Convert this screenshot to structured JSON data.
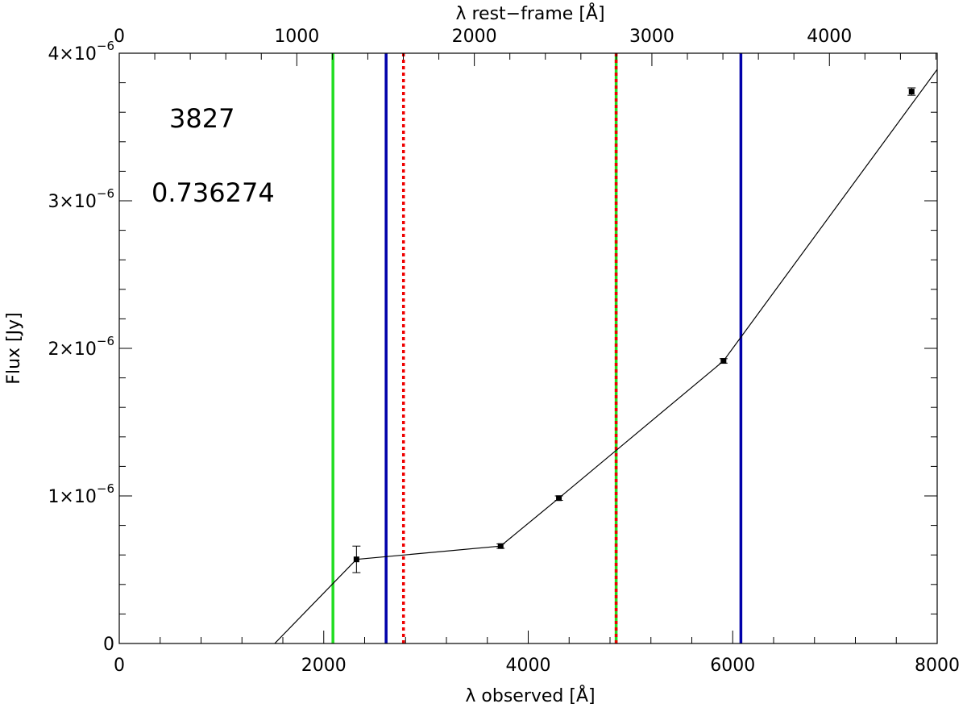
{
  "chart_data": {
    "type": "scatter",
    "title": "",
    "xlabel": "λ observed [Å]",
    "x2label": "λ rest−frame [Å]",
    "ylabel": "Flux [Jy]",
    "xlim": [
      0,
      8000
    ],
    "x2lim": [
      0,
      4607
    ],
    "ylim": [
      0,
      4e-06
    ],
    "x_ticks": [
      {
        "value": 0,
        "label": "0"
      },
      {
        "value": 2000,
        "label": "2000"
      },
      {
        "value": 4000,
        "label": "4000"
      },
      {
        "value": 6000,
        "label": "6000"
      },
      {
        "value": 8000,
        "label": "8000"
      }
    ],
    "x2_ticks": [
      {
        "value": 0,
        "label": "0"
      },
      {
        "value": 1000,
        "label": "1000"
      },
      {
        "value": 2000,
        "label": "2000"
      },
      {
        "value": 3000,
        "label": "3000"
      },
      {
        "value": 4000,
        "label": "4000"
      }
    ],
    "y_ticks": [
      {
        "value": 0,
        "mant": "0",
        "exp": ""
      },
      {
        "value": 1e-06,
        "mant": "1×10",
        "exp": "−6"
      },
      {
        "value": 2e-06,
        "mant": "2×10",
        "exp": "−6"
      },
      {
        "value": 3e-06,
        "mant": "3×10",
        "exp": "−6"
      },
      {
        "value": 4e-06,
        "mant": "4×10",
        "exp": "−6"
      }
    ],
    "grid": false,
    "annotations": [
      "3827",
      "0.736274"
    ],
    "points": [
      {
        "x": 2320,
        "y": 5.7e-07,
        "err": 9e-08
      },
      {
        "x": 3730,
        "y": 6.6e-07,
        "err": 1.5e-08
      },
      {
        "x": 4300,
        "y": 9.85e-07,
        "err": 1.5e-08
      },
      {
        "x": 5910,
        "y": 1.915e-06,
        "err": 1.5e-08
      },
      {
        "x": 7750,
        "y": 3.74e-06,
        "err": 2.5e-08
      }
    ],
    "model_line": [
      {
        "x": 1520,
        "y": 0
      },
      {
        "x": 2320,
        "y": 5.7e-07
      },
      {
        "x": 3730,
        "y": 6.6e-07
      },
      {
        "x": 4300,
        "y": 9.85e-07
      },
      {
        "x": 5910,
        "y": 1.915e-06
      },
      {
        "x": 8000,
        "y": 3.89e-06
      }
    ],
    "vlines": [
      {
        "x": 2090,
        "color": "#22dd22",
        "style": "solid"
      },
      {
        "x": 2610,
        "color": "#0000aa",
        "style": "solid"
      },
      {
        "x": 2780,
        "color": "#ee0000",
        "style": "dotted"
      },
      {
        "x": 4860,
        "color": "#22dd22",
        "style": "solid"
      },
      {
        "x": 4860,
        "color": "#ee0000",
        "style": "dotted"
      },
      {
        "x": 6080,
        "color": "#0000aa",
        "style": "solid"
      }
    ]
  }
}
